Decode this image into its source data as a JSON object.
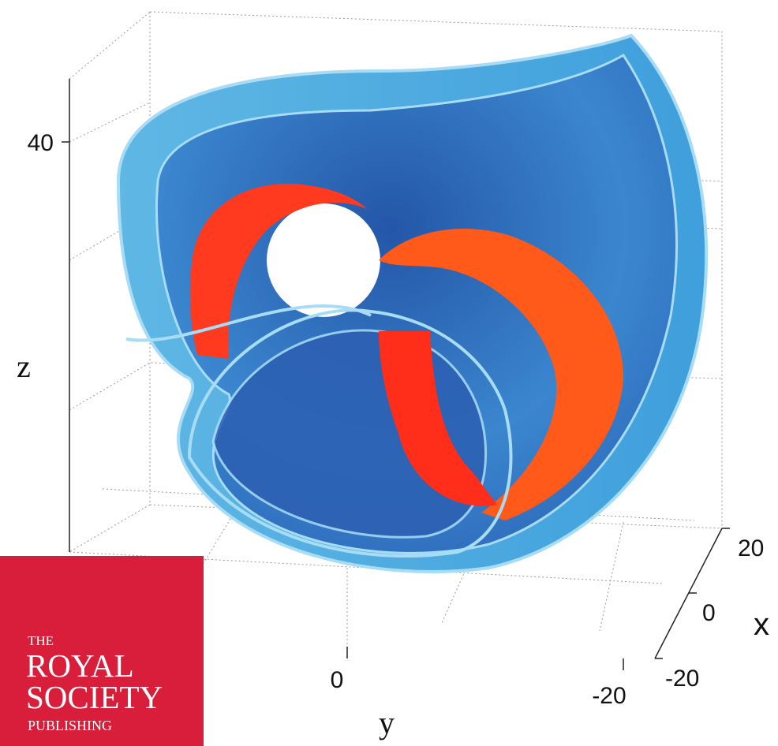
{
  "axes": {
    "z": {
      "label": "z",
      "ticks": [
        40
      ]
    },
    "y": {
      "label": "y",
      "ticks": [
        0,
        -20
      ]
    },
    "x": {
      "label": "x",
      "ticks": [
        20,
        0,
        -20
      ]
    }
  },
  "logo": {
    "lines": [
      "THE",
      "ROYAL",
      "SOCIETY",
      "PUBLISHING"
    ]
  }
}
